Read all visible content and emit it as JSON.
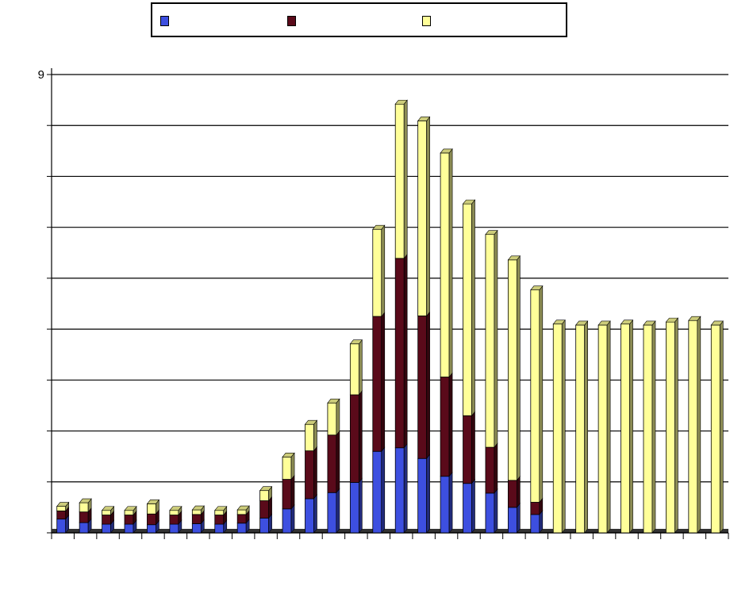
{
  "chart_data": {
    "type": "bar",
    "stacked": true,
    "style": "3d",
    "title": "",
    "xlabel": "",
    "ylabel": "",
    "ylim": [
      0,
      9
    ],
    "y_ticks": [
      "9",
      "",
      "",
      "",
      "",
      "",
      "",
      "",
      "",
      ""
    ],
    "grid": true,
    "legend_position": "top",
    "categories": [
      "",
      "",
      "",
      "",
      "",
      "",
      "",
      "",
      "",
      "",
      "",
      "",
      "",
      "",
      "",
      "",
      "",
      "",
      "",
      "",
      "",
      "",
      "",
      "",
      "",
      "",
      "",
      "",
      "",
      ""
    ],
    "series": [
      {
        "color": "#3d4fe0",
        "values": [
          0.27,
          0.2,
          0.17,
          0.17,
          0.16,
          0.17,
          0.18,
          0.17,
          0.19,
          0.29,
          0.47,
          0.67,
          0.79,
          0.99,
          1.6,
          1.67,
          1.46,
          1.11,
          0.97,
          0.78,
          0.5,
          0.36,
          0,
          0,
          0,
          0,
          0,
          0,
          0,
          0
        ]
      },
      {
        "color": "#5a0a1a",
        "values": [
          0.16,
          0.21,
          0.18,
          0.18,
          0.21,
          0.18,
          0.18,
          0.18,
          0.17,
          0.34,
          0.58,
          0.94,
          1.13,
          1.72,
          2.65,
          3.72,
          2.8,
          1.95,
          1.33,
          0.9,
          0.53,
          0.24,
          0,
          0,
          0,
          0,
          0,
          0,
          0,
          0
        ]
      },
      {
        "color": "#ffff99",
        "values": [
          0.09,
          0.18,
          0.09,
          0.09,
          0.2,
          0.09,
          0.09,
          0.09,
          0.09,
          0.2,
          0.44,
          0.52,
          0.63,
          1.0,
          1.71,
          3.03,
          3.83,
          4.4,
          4.16,
          4.18,
          4.33,
          4.17,
          4.1,
          4.08,
          4.08,
          4.1,
          4.08,
          4.14,
          4.17,
          4.08
        ]
      }
    ]
  },
  "legend": {
    "items": [
      {
        "label": "",
        "color": "#3d4fe0"
      },
      {
        "label": "",
        "color": "#5a0a1a"
      },
      {
        "label": "",
        "color": "#ffff99"
      }
    ]
  }
}
